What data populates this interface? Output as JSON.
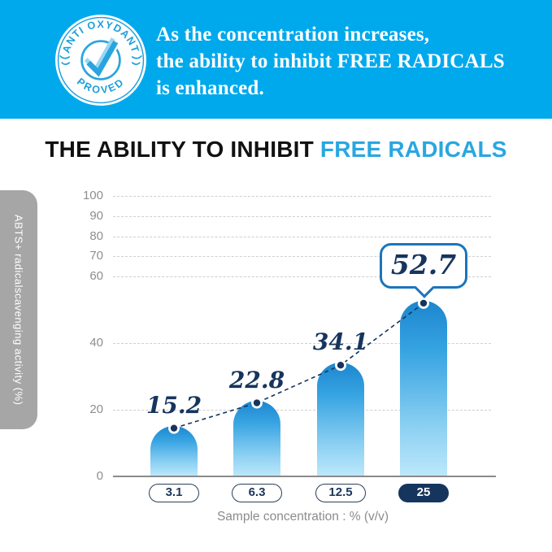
{
  "banner": {
    "bg_color": "#00A9EC",
    "badge": {
      "top_text": "ANTI OXYDANT",
      "bottom_text": "PROVED",
      "icon": "checkmark",
      "text_color": "#1D9FDB"
    },
    "headline_lines": [
      "As the concentration increases,",
      "the ability to inhibit FREE RADICALS",
      "is enhanced."
    ]
  },
  "title": {
    "prefix": "THE ABILITY TO INHIBIT ",
    "highlight": "FREE RADICALS",
    "highlight_color": "#29A7E1"
  },
  "side_tab": {
    "label": "ABTS+ radicalscavenging activity (%)"
  },
  "chart_data": {
    "type": "bar",
    "title": "THE ABILITY TO INHIBIT FREE RADICALS",
    "categories": [
      "3.1",
      "6.3",
      "12.5",
      "25"
    ],
    "values": [
      15.2,
      22.8,
      34.1,
      52.7
    ],
    "value_labels": [
      "15.2",
      "22.8",
      "34.1",
      "52.7"
    ],
    "xlabel": "Sample concentration : % (v/v)",
    "ylabel": "ABTS+ radicalscavenging activity (%)",
    "y_ticks": [
      0,
      20,
      40,
      60,
      70,
      80,
      90,
      100
    ],
    "ylim": [
      0,
      100
    ],
    "grid": "horizontal-dashed",
    "legend": "none",
    "highlight_index": 3,
    "callout_value": "52.7",
    "connector": "dashed line through bar-top dots",
    "colors": {
      "bar_gradient_top": "#1D86CE",
      "bar_gradient_bottom": "#BDE8FB",
      "navy_accent": "#16355D",
      "callout_border": "#1B75BC",
      "gridline": "#CFCFCF",
      "axis_line": "#8A8A8A",
      "tick_text": "#8E8E8E"
    }
  }
}
